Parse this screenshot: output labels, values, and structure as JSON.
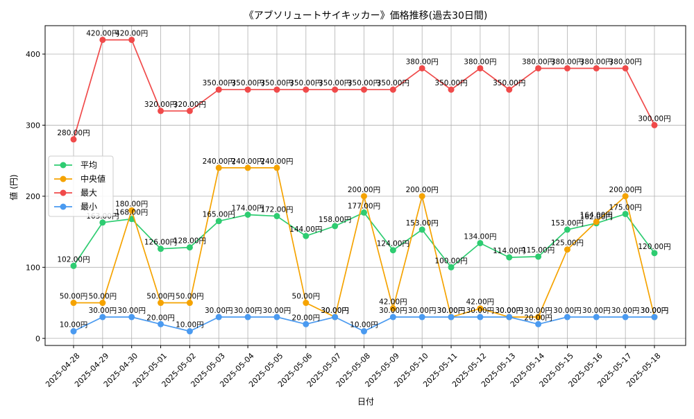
{
  "chart_data": {
    "type": "line",
    "title": "《アブソリュートサイキッカー》価格推移(過去30日間)",
    "xlabel": "日付",
    "ylabel": "値 (円)",
    "ylim": [
      -10,
      440
    ],
    "yticks": [
      0,
      100,
      200,
      300,
      400
    ],
    "grid": true,
    "legend_position": "center-left",
    "categories": [
      "2025-04-28",
      "2025-04-29",
      "2025-04-30",
      "2025-05-01",
      "2025-05-02",
      "2025-05-03",
      "2025-05-04",
      "2025-05-05",
      "2025-05-06",
      "2025-05-07",
      "2025-05-08",
      "2025-05-09",
      "2025-05-10",
      "2025-05-11",
      "2025-05-12",
      "2025-05-13",
      "2025-05-14",
      "2025-05-15",
      "2025-05-16",
      "2025-05-17",
      "2025-05-18"
    ],
    "series": [
      {
        "name": "平均",
        "color": "#2ecc71",
        "values": [
          102,
          163,
          168,
          126,
          128,
          165,
          174,
          172,
          144,
          158,
          177,
          124,
          153,
          100,
          134,
          114,
          115,
          153,
          162,
          175,
          120
        ]
      },
      {
        "name": "中央値",
        "color": "#f5a300",
        "values": [
          50,
          50,
          180,
          50,
          50,
          240,
          240,
          240,
          50,
          30,
          200,
          42,
          200,
          30,
          42,
          30,
          30,
          125,
          164,
          200,
          30
        ]
      },
      {
        "name": "最大",
        "color": "#f04a4a",
        "values": [
          280,
          420,
          420,
          320,
          320,
          350,
          350,
          350,
          350,
          350,
          350,
          350,
          380,
          350,
          380,
          350,
          380,
          380,
          380,
          380,
          300
        ]
      },
      {
        "name": "最小",
        "color": "#4a9af0",
        "values": [
          10,
          30,
          30,
          20,
          10,
          30,
          30,
          30,
          20,
          30,
          10,
          30,
          30,
          30,
          30,
          30,
          20,
          30,
          30,
          30,
          30
        ]
      }
    ],
    "value_suffix": "円"
  }
}
